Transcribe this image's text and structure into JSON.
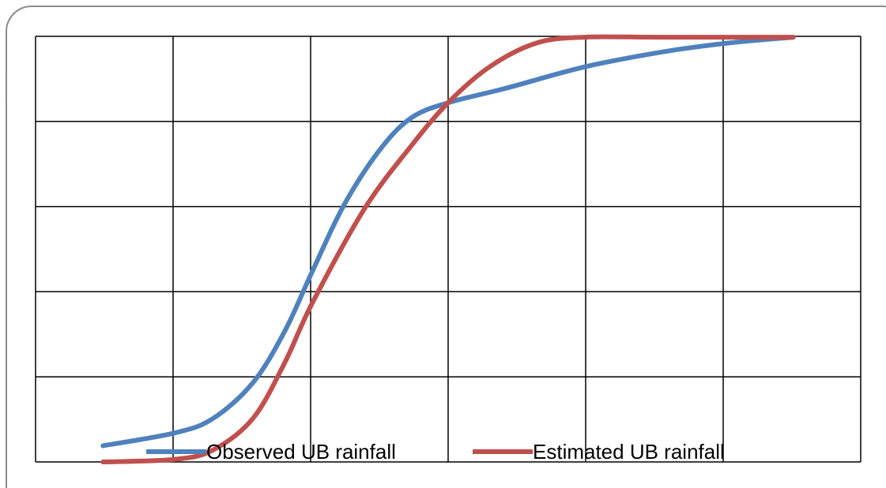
{
  "chart_data": {
    "type": "line",
    "xlim": [
      0,
      6
    ],
    "xticks": [
      0,
      1,
      2,
      3,
      4,
      5,
      6
    ],
    "ylim": [
      0,
      5
    ],
    "yticks": [
      0,
      1,
      2,
      3,
      4,
      5
    ],
    "grid": true,
    "legend": "bottom",
    "series": [
      {
        "name": "Observed UB rainfall",
        "color": "#4f81bd",
        "x": [
          0.49,
          1.01,
          1.29,
          1.58,
          1.81,
          2.01,
          2.24,
          2.5,
          2.73,
          3.0,
          3.42,
          3.99,
          4.57,
          5.03,
          5.51
        ],
        "values": [
          0.19,
          0.34,
          0.51,
          0.93,
          1.53,
          2.23,
          3.01,
          3.66,
          4.04,
          4.22,
          4.39,
          4.64,
          4.82,
          4.92,
          4.99
        ]
      },
      {
        "name": "Estimated UB rainfall",
        "color": "#c0504d",
        "x": [
          0.49,
          1.01,
          1.29,
          1.58,
          1.81,
          2.01,
          2.39,
          2.73,
          3.0,
          3.3,
          3.64,
          3.99,
          4.57,
          5.51
        ],
        "values": [
          0.0,
          0.03,
          0.14,
          0.51,
          1.16,
          1.86,
          2.97,
          3.71,
          4.22,
          4.64,
          4.92,
          4.99,
          4.99,
          4.99
        ]
      }
    ]
  }
}
